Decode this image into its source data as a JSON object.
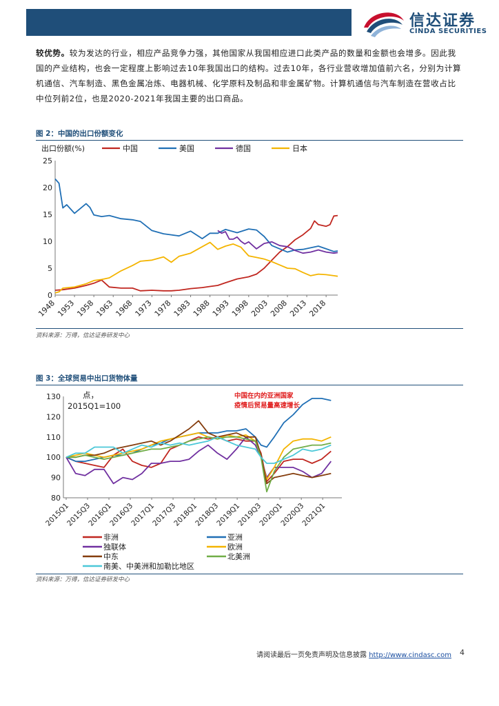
{
  "header": {
    "logo_cn": "信达证券",
    "logo_en": "CINDA SECURITIES",
    "brand_color": "#1f4e79",
    "accent_color": "#c8102e"
  },
  "paragraph": {
    "lead": "较优势。",
    "body": "较为发达的行业，相应产品竞争力强，其他国家从我国相应进口此类产品的数量和金额也会增多。因此我国的产业结构，也会一定程度上影响过去10年我国出口的结构。过去10年，各行业营收增加值前六名，分别为计算机通信、汽车制造、黑色金属冶炼、电器机械、化学原料及制品和非金属矿物。计算机通信与汽车制造在营收占比中位列前2位，也是2020-2021年我国主要的出口商品。"
  },
  "figure2": {
    "title": "图 2：中国的出口份额变化",
    "source": "资料来源：万得，信达证券研发中心"
  },
  "figure3": {
    "title": "图 3：全球贸易中出口货物体量",
    "source": "资料来源：万得，信达证券研发中心"
  },
  "footer": {
    "note": "请阅读最后一页免责声明及信息披露 ",
    "link": "http://www.cindasc.com",
    "page": "4"
  },
  "chart_data": [
    {
      "type": "line",
      "title": "图 2：中国的出口份额变化",
      "ylabel": "出口份额(%)",
      "ylim": [
        0,
        25
      ],
      "yticks": [
        "0",
        "5",
        "10",
        "15",
        "20",
        "25"
      ],
      "xlim": [
        1948,
        2021
      ],
      "xticks": [
        "1948",
        "1953",
        "1958",
        "1963",
        "1968",
        "1973",
        "1978",
        "1983",
        "1988",
        "1993",
        "1998",
        "2003",
        "2008",
        "2013",
        "2018"
      ],
      "legend_position": "top",
      "series": [
        {
          "name": "中国",
          "color": "#c0261f",
          "x": [
            1948,
            1950,
            1953,
            1956,
            1958,
            1960,
            1962,
            1965,
            1968,
            1970,
            1973,
            1976,
            1978,
            1980,
            1983,
            1986,
            1988,
            1990,
            1992,
            1995,
            1998,
            2000,
            2002,
            2004,
            2006,
            2008,
            2010,
            2012,
            2014,
            2015,
            2016,
            2018,
            2019,
            2020,
            2021
          ],
          "y": [
            0.9,
            1.0,
            1.3,
            1.8,
            2.2,
            2.8,
            1.5,
            1.3,
            1.3,
            0.8,
            0.9,
            0.8,
            0.8,
            0.9,
            1.2,
            1.4,
            1.6,
            1.8,
            2.3,
            3.0,
            3.4,
            3.9,
            5.0,
            6.5,
            8.0,
            9.0,
            10.3,
            11.2,
            12.4,
            13.8,
            13.1,
            12.8,
            13.1,
            14.7,
            14.8
          ]
        },
        {
          "name": "美国",
          "color": "#1f6fb5",
          "x": [
            1948,
            1949,
            1950,
            1951,
            1953,
            1956,
            1957,
            1958,
            1960,
            1962,
            1965,
            1968,
            1970,
            1973,
            1976,
            1978,
            1980,
            1983,
            1986,
            1988,
            1990,
            1992,
            1995,
            1998,
            2000,
            2002,
            2004,
            2006,
            2008,
            2010,
            2012,
            2014,
            2016,
            2018,
            2020,
            2021
          ],
          "y": [
            21.6,
            20.8,
            16.2,
            16.8,
            15.2,
            17.0,
            16.3,
            14.9,
            14.6,
            14.8,
            14.2,
            14.0,
            13.7,
            12.0,
            11.4,
            11.2,
            11.0,
            11.9,
            10.5,
            11.5,
            11.5,
            12.2,
            11.6,
            12.3,
            12.1,
            10.9,
            9.2,
            8.6,
            8.0,
            8.4,
            8.5,
            8.8,
            9.1,
            8.6,
            8.1,
            8.2
          ]
        },
        {
          "name": "德国",
          "color": "#7030a0",
          "x": [
            1990,
            1991,
            1992,
            1993,
            1994,
            1995,
            1996,
            1997,
            1998,
            2000,
            2002,
            2004,
            2006,
            2008,
            2010,
            2012,
            2014,
            2016,
            2018,
            2020,
            2021
          ],
          "y": [
            12.0,
            11.5,
            11.8,
            10.4,
            10.4,
            10.8,
            10.0,
            9.5,
            9.9,
            8.6,
            9.6,
            9.9,
            9.2,
            9.0,
            8.3,
            7.8,
            8.0,
            8.4,
            8.0,
            7.8,
            7.9
          ]
        },
        {
          "name": "日本",
          "color": "#f4b400",
          "x": [
            1948,
            1949,
            1950,
            1953,
            1956,
            1958,
            1960,
            1962,
            1965,
            1968,
            1970,
            1973,
            1976,
            1978,
            1980,
            1983,
            1986,
            1988,
            1990,
            1992,
            1994,
            1996,
            1998,
            2000,
            2002,
            2004,
            2006,
            2008,
            2010,
            2012,
            2014,
            2016,
            2018,
            2020,
            2021
          ],
          "y": [
            0.4,
            0.6,
            1.3,
            1.5,
            2.1,
            2.7,
            2.9,
            3.2,
            4.5,
            5.5,
            6.3,
            6.5,
            7.1,
            6.1,
            7.2,
            7.8,
            9.0,
            9.8,
            8.5,
            9.1,
            9.5,
            8.9,
            7.3,
            7.0,
            6.7,
            6.2,
            5.6,
            5.0,
            4.9,
            4.2,
            3.6,
            3.9,
            3.8,
            3.6,
            3.5
          ]
        }
      ]
    },
    {
      "type": "line",
      "title": "图 3：全球贸易中出口货物体量",
      "ylabel": "点，2015Q1=100",
      "ylim": [
        80,
        130
      ],
      "yticks": [
        "80",
        "90",
        "100",
        "110",
        "120",
        "130"
      ],
      "xticks": [
        "2015Q1",
        "2015Q3",
        "2016Q1",
        "2016Q3",
        "2017Q1",
        "2017Q3",
        "2018Q1",
        "2018Q3",
        "2019Q1",
        "2019Q3",
        "2020Q1",
        "2020Q3",
        "2021Q1"
      ],
      "annotation": "中国在内的亚洲国家\n疫情后贸易量高速增长",
      "legend_position": "bottom",
      "series": [
        {
          "name": "非洲",
          "color": "#c0261f",
          "x": [
            0,
            0.5,
            1,
            1.5,
            2,
            2.5,
            3,
            3.5,
            4,
            4.5,
            5,
            5.5,
            6,
            6.5,
            7,
            7.5,
            8,
            8.5,
            9,
            9.5,
            10,
            10.3,
            10.6,
            11,
            11.5,
            12,
            12.5,
            13,
            13.5,
            14
          ],
          "y": [
            100,
            98,
            97,
            96,
            95,
            101,
            104,
            98,
            96,
            95,
            97,
            104,
            106,
            108,
            110,
            109,
            110,
            108,
            109,
            108,
            108,
            102,
            88,
            92,
            98,
            99,
            99,
            97,
            99,
            103
          ]
        },
        {
          "name": "亚洲",
          "color": "#1f6fb5",
          "x": [
            0,
            0.5,
            1,
            1.5,
            2,
            2.5,
            3,
            3.5,
            4,
            4.5,
            5,
            5.5,
            6,
            6.5,
            7,
            7.5,
            8,
            8.5,
            9,
            9.5,
            10,
            10.3,
            10.6,
            11,
            11.5,
            12,
            12.5,
            13,
            13.5,
            14
          ],
          "y": [
            100,
            98,
            98,
            99,
            100,
            101,
            101,
            102,
            104,
            106,
            107,
            109,
            110,
            111,
            112,
            112,
            112,
            113,
            113,
            114,
            110,
            106,
            105,
            110,
            117,
            121,
            126,
            129,
            129,
            128
          ]
        },
        {
          "name": "独联体",
          "color": "#7030a0",
          "x": [
            0,
            0.5,
            1,
            1.5,
            2,
            2.5,
            3,
            3.5,
            4,
            4.5,
            5,
            5.5,
            6,
            6.5,
            7,
            7.5,
            8,
            8.5,
            9,
            9.5,
            10,
            10.3,
            10.6,
            11,
            11.5,
            12,
            12.5,
            13,
            13.5,
            14
          ],
          "y": [
            100,
            92,
            91,
            94,
            94,
            87,
            90,
            89,
            92,
            97,
            97,
            98,
            98,
            99,
            103,
            106,
            102,
            99,
            104,
            110,
            106,
            100,
            90,
            95,
            95,
            95,
            93,
            90,
            92,
            98
          ]
        },
        {
          "name": "欧洲",
          "color": "#f4b400",
          "x": [
            0,
            0.5,
            1,
            1.5,
            2,
            2.5,
            3,
            3.5,
            4,
            4.5,
            5,
            5.5,
            6,
            6.5,
            7,
            7.5,
            8,
            8.5,
            9,
            9.5,
            10,
            10.3,
            10.6,
            11,
            11.5,
            12,
            12.5,
            13,
            13.5,
            14
          ],
          "y": [
            100,
            101,
            102,
            101,
            100,
            101,
            102,
            103,
            104,
            106,
            108,
            109,
            110,
            111,
            112,
            110,
            109,
            111,
            110,
            111,
            108,
            100,
            89,
            95,
            104,
            108,
            109,
            109,
            108,
            110
          ]
        },
        {
          "name": "中东",
          "color": "#843c0c",
          "x": [
            0,
            0.5,
            1,
            1.5,
            2,
            2.5,
            3,
            3.5,
            4,
            4.5,
            5,
            5.5,
            6,
            6.5,
            7,
            7.5,
            8,
            8.5,
            9,
            9.5,
            10,
            10.3,
            10.6,
            11,
            11.5,
            12,
            12.5,
            13,
            13.5,
            14
          ],
          "y": [
            100,
            100,
            101,
            101,
            102,
            104,
            105,
            106,
            107,
            108,
            106,
            108,
            111,
            114,
            118,
            112,
            110,
            111,
            112,
            110,
            110,
            101,
            87,
            90,
            91,
            92,
            91,
            90,
            91,
            92
          ]
        },
        {
          "name": "北美洲",
          "color": "#70ad47",
          "x": [
            0,
            0.5,
            1,
            1.5,
            2,
            2.5,
            3,
            3.5,
            4,
            4.5,
            5,
            5.5,
            6,
            6.5,
            7,
            7.5,
            8,
            8.5,
            9,
            9.5,
            10,
            10.3,
            10.6,
            11,
            11.5,
            12,
            12.5,
            13,
            13.5,
            14
          ],
          "y": [
            100,
            100,
            101,
            100,
            99,
            100,
            101,
            102,
            103,
            104,
            104,
            105,
            106,
            108,
            109,
            110,
            109,
            110,
            110,
            109,
            108,
            100,
            83,
            93,
            100,
            104,
            105,
            106,
            106,
            107
          ]
        },
        {
          "name": "南美、中美洲和加勒比地区",
          "color": "#4bc8d8",
          "x": [
            0,
            0.5,
            1,
            1.5,
            2,
            2.5,
            3,
            3.5,
            4,
            4.5,
            5,
            5.5,
            6,
            6.5,
            7,
            7.5,
            8,
            8.5,
            9,
            9.5,
            10,
            10.3,
            10.6,
            11,
            11.5,
            12,
            12.5,
            13,
            13.5,
            14
          ],
          "y": [
            100,
            102,
            102,
            105,
            105,
            105,
            102,
            104,
            106,
            105,
            107,
            106,
            107,
            106,
            107,
            108,
            110,
            108,
            106,
            105,
            104,
            100,
            97,
            97,
            99,
            101,
            104,
            103,
            104,
            106
          ]
        }
      ]
    }
  ]
}
